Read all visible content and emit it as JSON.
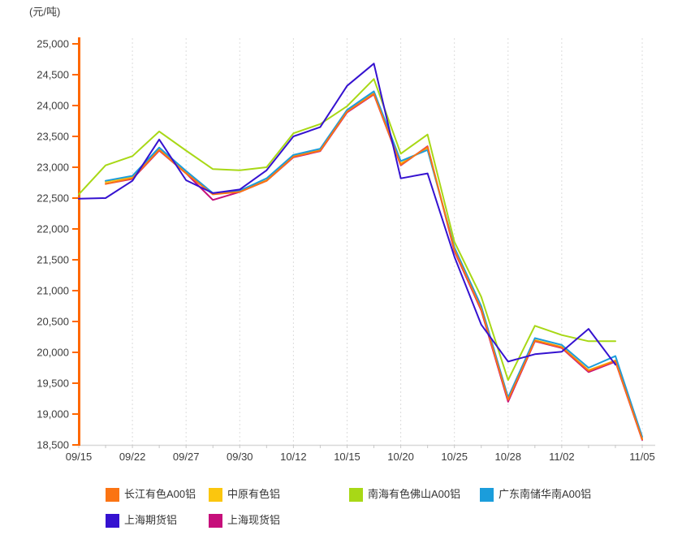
{
  "chart_data": {
    "type": "line",
    "title": "",
    "y_axis": {
      "unit_label": "(元/吨)",
      "min": 18500,
      "max": 25000,
      "step": 500,
      "tick_labels": [
        "25,000",
        "24,500",
        "24,000",
        "23,500",
        "23,000",
        "22,500",
        "22,000",
        "21,500",
        "21,000",
        "20,500",
        "20,000",
        "19,500",
        "19,000",
        "18,500"
      ]
    },
    "x_axis": {
      "tick_labels": [
        "09/15",
        "09/22",
        "09/27",
        "09/30",
        "10/12",
        "10/15",
        "10/20",
        "10/25",
        "10/28",
        "11/02",
        "11/05"
      ],
      "label_point_indices": [
        0,
        2,
        4,
        6,
        8,
        10,
        12,
        14,
        16,
        18,
        21
      ],
      "num_points": 22,
      "grid": "dashed-vertical"
    },
    "axis_colors": {
      "y_axis": "#FF6800",
      "x_axis": "#D8D8D8",
      "grid": "#DCDCDC",
      "tick_mark": "#C8C8C8",
      "text": "#3C3C3C"
    },
    "legend_position": "bottom",
    "series": [
      {
        "name": "长江有色A00铝",
        "color": "#FB7413",
        "values": [
          null,
          22730,
          22820,
          23280,
          22900,
          22560,
          22600,
          22780,
          23170,
          23270,
          23900,
          24190,
          23040,
          23330,
          21660,
          20700,
          19230,
          20190,
          20080,
          19700,
          19860,
          18590
        ]
      },
      {
        "name": "中原有色铝",
        "color": "#FBC60E",
        "values": [
          null,
          22760,
          22840,
          23300,
          22920,
          22570,
          22610,
          22790,
          23180,
          23280,
          23910,
          24210,
          23060,
          23310,
          21670,
          20710,
          19250,
          20200,
          20090,
          19710,
          19870,
          18600
        ]
      },
      {
        "name": "南海有色佛山A00铝",
        "color": "#A8D816",
        "values": [
          22560,
          23030,
          23180,
          23580,
          23270,
          22970,
          22950,
          23000,
          23550,
          23700,
          23990,
          24430,
          23220,
          23530,
          21790,
          20900,
          19550,
          20430,
          20280,
          20180,
          20180,
          null
        ]
      },
      {
        "name": "广东南储华南A00铝",
        "color": "#1B9DDB",
        "values": [
          null,
          22780,
          22860,
          23320,
          22940,
          22580,
          22620,
          22820,
          23200,
          23300,
          23930,
          24230,
          23100,
          23280,
          21700,
          20750,
          19270,
          20230,
          20120,
          19750,
          19940,
          18630
        ]
      },
      {
        "name": "上海期货铝",
        "color": "#3512D0",
        "values": [
          22490,
          22500,
          22780,
          23450,
          22790,
          22580,
          22640,
          22950,
          23500,
          23650,
          24320,
          24680,
          22820,
          22900,
          21550,
          20450,
          19850,
          19970,
          20010,
          20380,
          19800,
          null
        ]
      },
      {
        "name": "上海现货铝",
        "color": "#C60F7B",
        "values": [
          null,
          22730,
          22810,
          23270,
          22900,
          22470,
          22600,
          22780,
          23160,
          23260,
          23890,
          24180,
          23030,
          23340,
          21640,
          20680,
          19200,
          20180,
          20070,
          19680,
          19850,
          18580
        ]
      }
    ]
  }
}
